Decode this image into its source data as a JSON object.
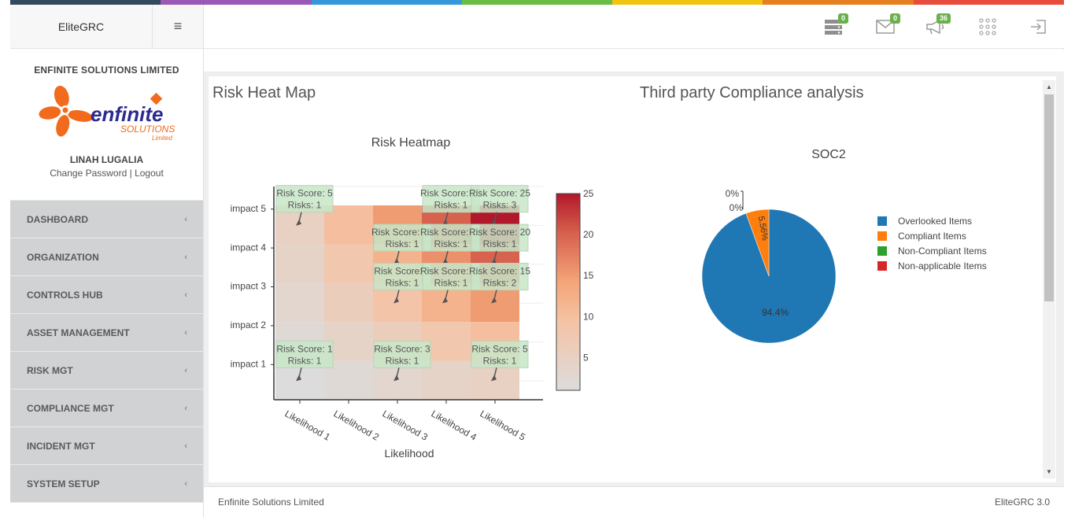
{
  "stripes": [
    "#34495e",
    "#9b59b6",
    "#3498db",
    "#6abe45",
    "#f1c40f",
    "#e67e22",
    "#e74c3c"
  ],
  "brand": {
    "name": "EliteGRC",
    "menu_icon": "hamburger-icon"
  },
  "profile": {
    "company": "ENFINITE SOLUTIONS LIMITED",
    "logo_text": "enfinite",
    "logo_sub": "SOLUTIONS",
    "logo_sub2": "Limited",
    "user": "LINAH LUGALIA",
    "change_password": "Change Password",
    "separator": "|",
    "logout": "Logout"
  },
  "menu": [
    {
      "label": "DASHBOARD"
    },
    {
      "label": "ORGANIZATION"
    },
    {
      "label": "CONTROLS HUB"
    },
    {
      "label": "ASSET MANAGEMENT"
    },
    {
      "label": "RISK MGT"
    },
    {
      "label": "COMPLIANCE MGT"
    },
    {
      "label": "INCIDENT MGT"
    },
    {
      "label": "SYSTEM SETUP"
    }
  ],
  "header_icons": [
    {
      "icon": "server-icon",
      "badge": "0"
    },
    {
      "icon": "mail-icon",
      "badge": "0"
    },
    {
      "icon": "megaphone-icon",
      "badge": "36"
    },
    {
      "icon": "apps-grid-icon",
      "badge": ""
    },
    {
      "icon": "sign-out-icon",
      "badge": ""
    }
  ],
  "sections": {
    "heatmap_title": "Risk Heat Map",
    "compliance_title": "Third party Compliance analysis"
  },
  "chart_data": [
    {
      "type": "heatmap",
      "title": "Risk Heatmap",
      "xlabel": "Likelihood",
      "ylabel": "",
      "x": [
        "Likelihood 1",
        "Likelihood 2",
        "Likelihood 3",
        "Likelihood 4",
        "Likelihood 5"
      ],
      "y": [
        "impact 1",
        "impact 2",
        "impact 3",
        "impact 4",
        "impact 5"
      ],
      "z": [
        [
          1,
          2,
          3,
          4,
          5
        ],
        [
          2,
          4,
          6,
          8,
          10
        ],
        [
          3,
          6,
          9,
          12,
          15
        ],
        [
          4,
          8,
          12,
          16,
          20
        ],
        [
          5,
          10,
          15,
          20,
          25
        ]
      ],
      "colorbar_ticks": [
        "5",
        "10",
        "15",
        "20",
        "25"
      ],
      "annotations": [
        {
          "x": 1,
          "y": 5,
          "text1": "Risk Score: 5",
          "text2": "Risks: 1"
        },
        {
          "x": 4,
          "y": 5,
          "text1": "Risk Score: 20",
          "text2": "Risks: 1"
        },
        {
          "x": 5,
          "y": 5,
          "text1": "Risk Score: 25",
          "text2": "Risks: 3"
        },
        {
          "x": 3,
          "y": 4,
          "text1": "Risk Score: 12",
          "text2": "Risks: 1"
        },
        {
          "x": 4,
          "y": 4,
          "text1": "Risk Score: 16",
          "text2": "Risks: 1"
        },
        {
          "x": 5,
          "y": 4,
          "text1": "Risk Score: 20",
          "text2": "Risks: 1"
        },
        {
          "x": 3,
          "y": 3,
          "text1": "Risk Score: 9",
          "text2": "Risks: 1"
        },
        {
          "x": 4,
          "y": 3,
          "text1": "Risk Score: 12",
          "text2": "Risks: 1"
        },
        {
          "x": 5,
          "y": 3,
          "text1": "Risk Score: 15",
          "text2": "Risks: 2"
        },
        {
          "x": 1,
          "y": 1,
          "text1": "Risk Score: 1",
          "text2": "Risks: 1"
        },
        {
          "x": 3,
          "y": 1,
          "text1": "Risk Score: 3",
          "text2": "Risks: 1"
        },
        {
          "x": 5,
          "y": 1,
          "text1": "Risk Score: 5",
          "text2": "Risks: 1"
        }
      ]
    },
    {
      "type": "pie",
      "title": "SOC2",
      "categories": [
        "Overlooked Items",
        "Compliant Items",
        "Non-Compliant Items",
        "Non-applicable Items"
      ],
      "values": [
        94.4,
        5.56,
        0,
        0
      ],
      "labels": [
        "94.4%",
        "5.56%",
        "0%",
        "0%"
      ],
      "colors": [
        "#1f77b4",
        "#ff7f0e",
        "#2ca02c",
        "#d62728"
      ],
      "legend": "right"
    }
  ],
  "footer": {
    "left": "Enfinite Solutions Limited",
    "right": "EliteGRC 3.0"
  }
}
